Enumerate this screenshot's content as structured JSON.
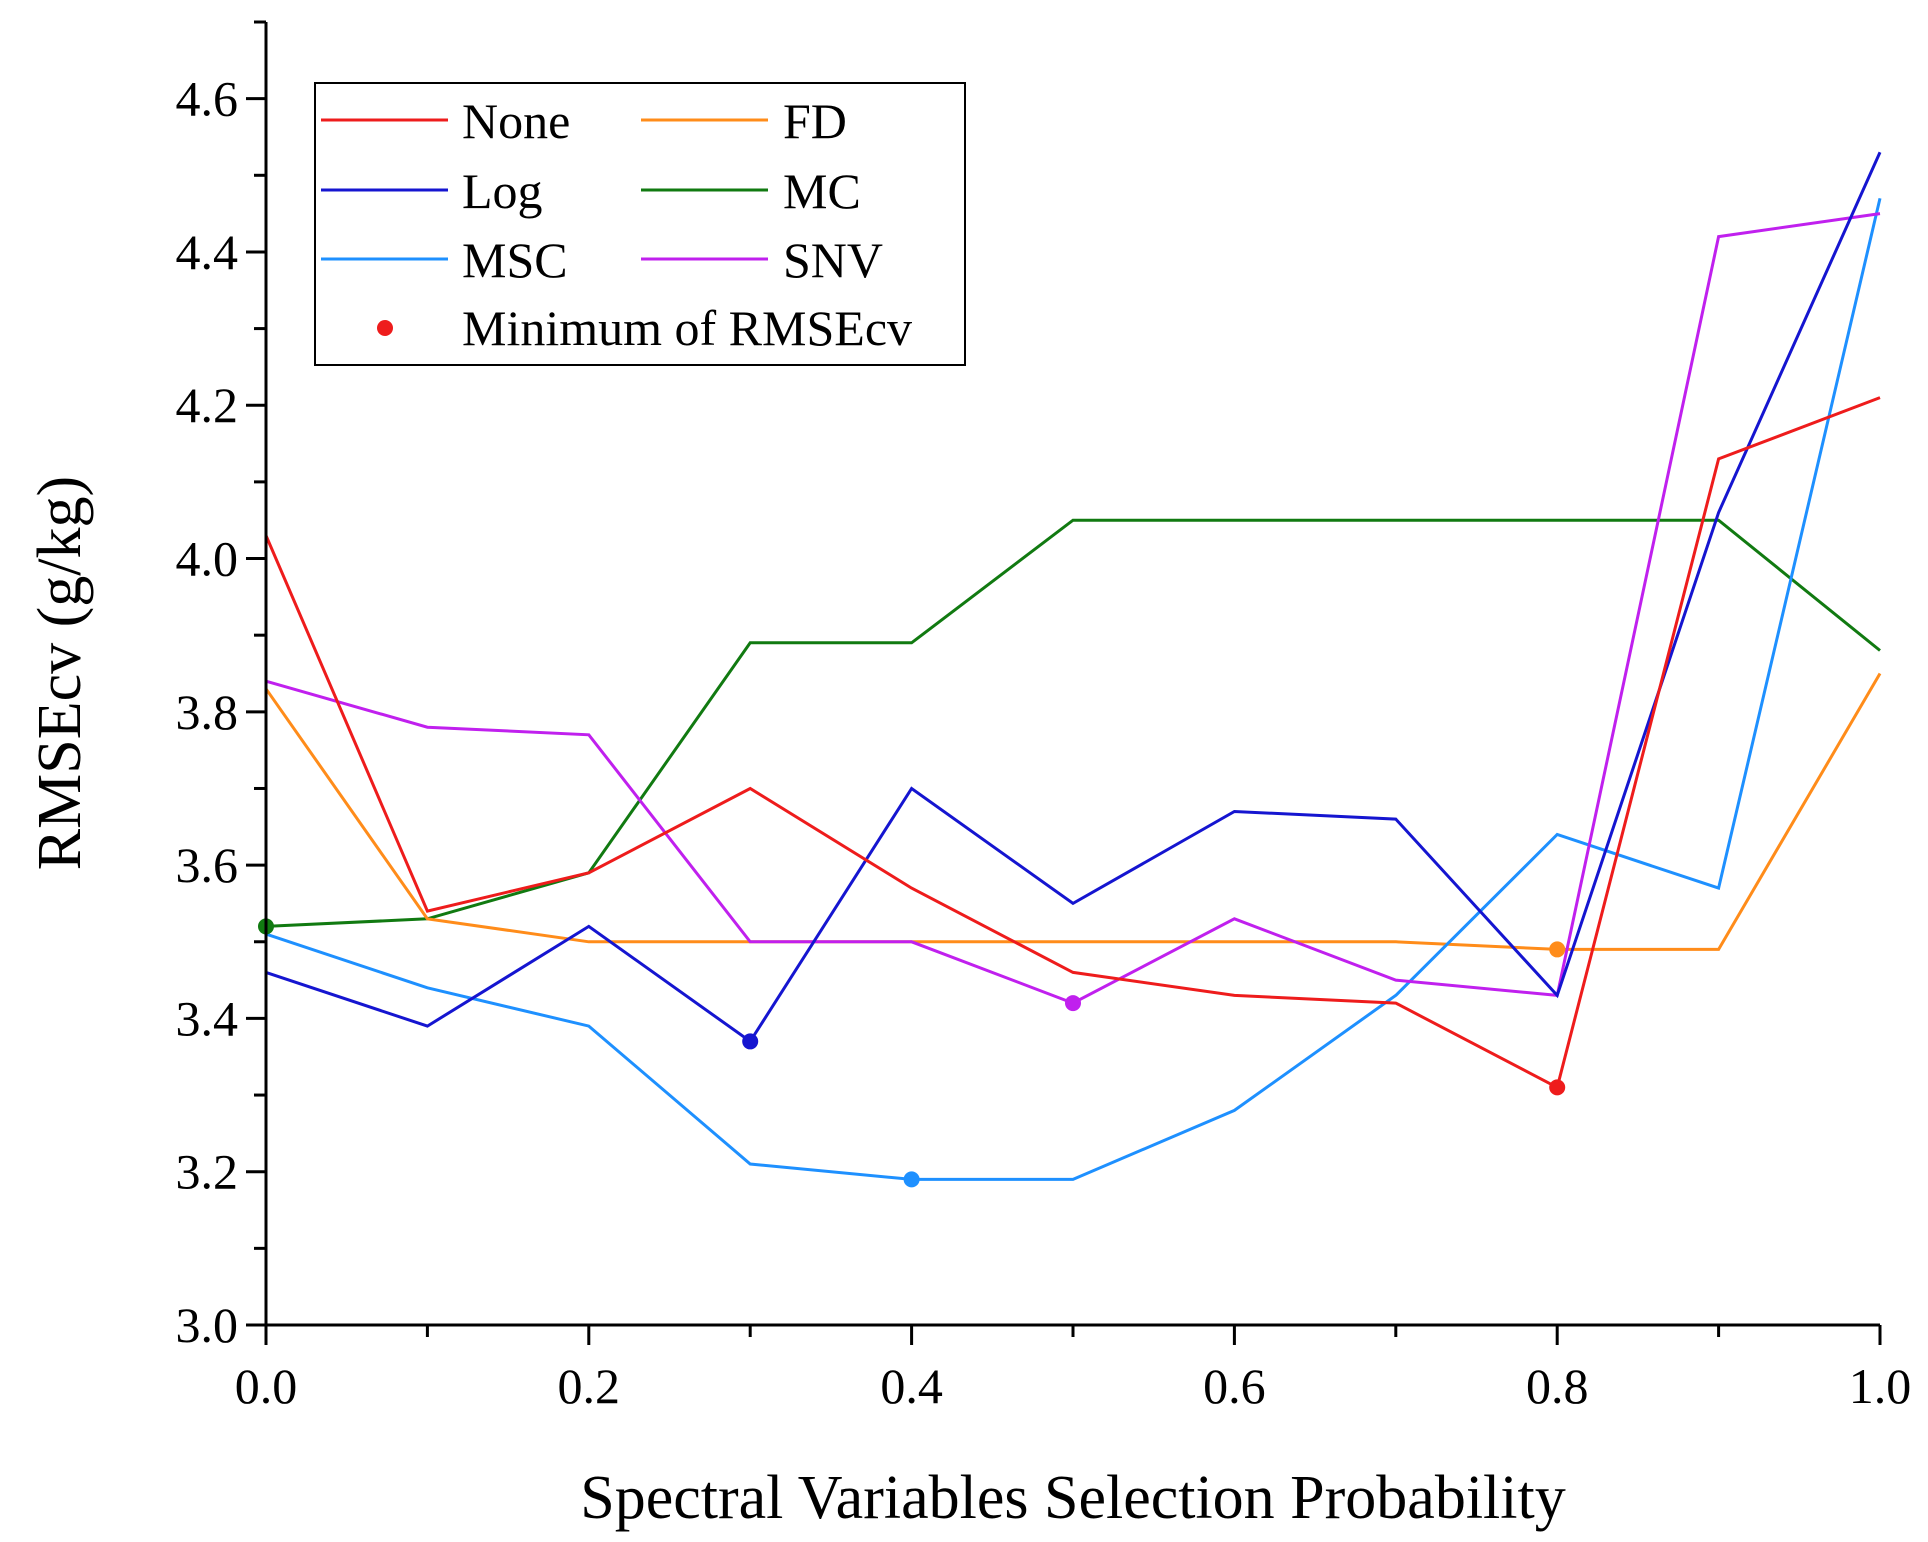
{
  "chart_data": {
    "type": "line",
    "title": "",
    "xlabel": "Spectral Variables Selection Probability",
    "ylabel": "RMSEcv (g/kg)",
    "xlim": [
      0.0,
      1.0
    ],
    "ylim": [
      3.0,
      4.7
    ],
    "x": [
      0.0,
      0.1,
      0.2,
      0.3,
      0.4,
      0.5,
      0.6,
      0.7,
      0.8,
      0.9,
      1.0
    ],
    "x_tick_labels": [
      "0.0",
      "0.2",
      "0.4",
      "0.6",
      "0.8",
      "1.0"
    ],
    "y_tick_labels": [
      "3.0",
      "3.2",
      "3.4",
      "3.6",
      "3.8",
      "4.0",
      "4.2",
      "4.4",
      "4.6"
    ],
    "series": [
      {
        "name": "None",
        "color": "#ee1c1c",
        "values": [
          4.03,
          3.54,
          3.59,
          3.7,
          3.57,
          3.46,
          3.43,
          3.42,
          3.31,
          4.13,
          4.21
        ],
        "min_index": 8
      },
      {
        "name": "FD",
        "color": "#ff8c1a",
        "values": [
          3.83,
          3.53,
          3.5,
          3.5,
          3.5,
          3.5,
          3.5,
          3.5,
          3.49,
          3.49,
          3.85
        ],
        "min_index": 8
      },
      {
        "name": "Log",
        "color": "#1515d0",
        "values": [
          3.46,
          3.39,
          3.52,
          3.37,
          3.7,
          3.55,
          3.67,
          3.66,
          3.43,
          4.06,
          4.53
        ],
        "min_index": 3
      },
      {
        "name": "MC",
        "color": "#117a11",
        "values": [
          3.52,
          3.53,
          3.59,
          3.89,
          3.89,
          4.05,
          4.05,
          4.05,
          4.05,
          4.05,
          3.88
        ],
        "min_index": 0
      },
      {
        "name": "MSC",
        "color": "#1e90ff",
        "values": [
          3.51,
          3.44,
          3.39,
          3.21,
          3.19,
          3.19,
          3.28,
          3.43,
          3.64,
          3.57,
          4.47
        ],
        "min_index": 4
      },
      {
        "name": "SNV",
        "color": "#c020ee",
        "values": [
          3.84,
          3.78,
          3.77,
          3.5,
          3.5,
          3.42,
          3.53,
          3.45,
          3.43,
          4.42,
          4.45
        ],
        "min_index": 5
      }
    ],
    "legend": {
      "position": "top-left",
      "columns": 2,
      "minimum_label": "Minimum of RMSEcv",
      "minimum_color": "#ee1c1c"
    },
    "grid": false
  }
}
